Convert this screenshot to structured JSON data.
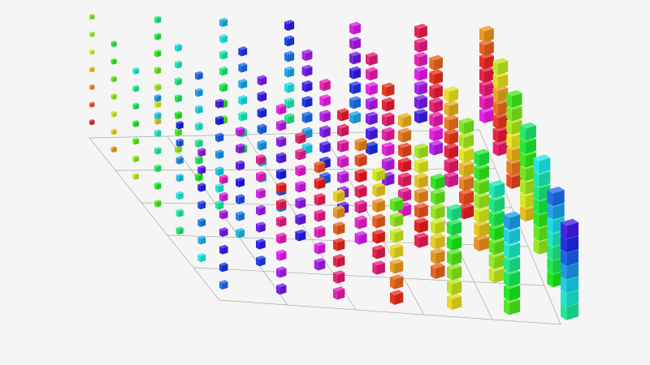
{
  "chart_data": {
    "type": "scatter3d",
    "symbol": "cube",
    "title": "",
    "grid": true,
    "axis_labels_shown": false,
    "x_values": [
      0,
      1,
      2,
      3,
      4,
      5,
      6,
      7,
      8,
      9,
      10,
      11,
      12
    ],
    "y_values": [
      0,
      1,
      2,
      3,
      4,
      5,
      6,
      7,
      8,
      9,
      10,
      11,
      12
    ],
    "z_values": [
      0,
      1,
      2,
      3,
      4,
      5,
      6,
      7,
      8,
      9,
      10,
      11,
      12
    ],
    "color_encoding": "hue",
    "size_encoding": "value",
    "background_color": "#f5f5f5",
    "grid_color": "#aaaaaa"
  }
}
